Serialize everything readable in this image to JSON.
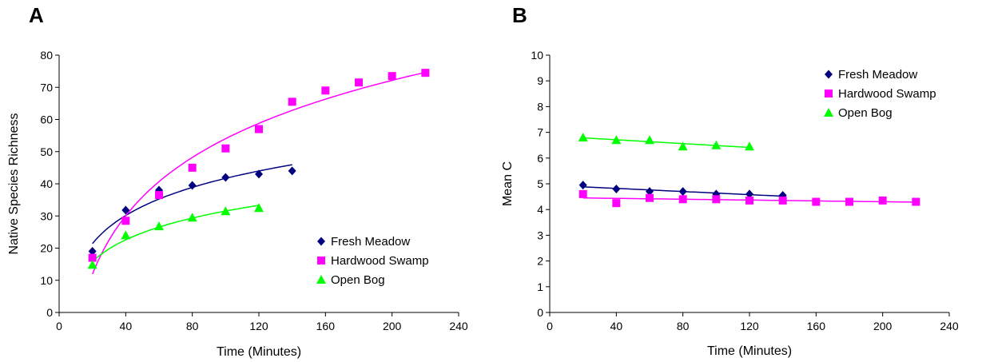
{
  "chart_data": [
    {
      "panel": "A",
      "type": "scatter",
      "title": "",
      "xlabel": "Time (Minutes)",
      "ylabel": "Native Species Richness",
      "xlim": [
        0,
        240
      ],
      "ylim": [
        0,
        80
      ],
      "xticks": [
        0,
        40,
        80,
        120,
        160,
        200,
        240
      ],
      "yticks": [
        0,
        10,
        20,
        30,
        40,
        50,
        60,
        70,
        80
      ],
      "grid": false,
      "legend_position": "bottom-right",
      "trendline": "logarithmic",
      "series": [
        {
          "name": "Fresh Meadow",
          "marker": "diamond",
          "color": "#000080",
          "x": [
            20,
            40,
            60,
            80,
            100,
            120,
            140
          ],
          "y": [
            19,
            31.8,
            38,
            39.5,
            42,
            43,
            44
          ]
        },
        {
          "name": "Hardwood Swamp",
          "marker": "square",
          "color": "#ff00ff",
          "x": [
            20,
            40,
            60,
            80,
            100,
            120,
            140,
            160,
            180,
            200,
            220
          ],
          "y": [
            17,
            28.5,
            36.5,
            45,
            51,
            57,
            65.5,
            69,
            71.5,
            73.5,
            74.5
          ]
        },
        {
          "name": "Open Bog",
          "marker": "triangle",
          "color": "#00ff00",
          "x": [
            20,
            40,
            60,
            80,
            100,
            120
          ],
          "y": [
            14.8,
            24,
            26.8,
            29.5,
            31.5,
            32.5
          ]
        }
      ]
    },
    {
      "panel": "B",
      "type": "scatter",
      "title": "",
      "xlabel": "Time (Minutes)",
      "ylabel": "Mean C",
      "xlim": [
        0,
        240
      ],
      "ylim": [
        0,
        10
      ],
      "xticks": [
        0,
        40,
        80,
        120,
        160,
        200,
        240
      ],
      "yticks": [
        0,
        1,
        2,
        3,
        4,
        5,
        6,
        7,
        8,
        9,
        10
      ],
      "grid": false,
      "legend_position": "top-right",
      "trendline": "linear",
      "series": [
        {
          "name": "Fresh Meadow",
          "marker": "diamond",
          "color": "#000080",
          "x": [
            20,
            40,
            60,
            80,
            100,
            120,
            140
          ],
          "y": [
            4.95,
            4.8,
            4.7,
            4.7,
            4.6,
            4.6,
            4.55
          ]
        },
        {
          "name": "Hardwood Swamp",
          "marker": "square",
          "color": "#ff00ff",
          "x": [
            20,
            40,
            60,
            80,
            100,
            120,
            140,
            160,
            180,
            200,
            220
          ],
          "y": [
            4.6,
            4.25,
            4.45,
            4.4,
            4.4,
            4.35,
            4.35,
            4.3,
            4.3,
            4.35,
            4.3
          ]
        },
        {
          "name": "Open Bog",
          "marker": "triangle",
          "color": "#00ff00",
          "x": [
            20,
            40,
            60,
            80,
            100,
            120
          ],
          "y": [
            6.8,
            6.7,
            6.7,
            6.45,
            6.5,
            6.45
          ]
        }
      ]
    }
  ]
}
